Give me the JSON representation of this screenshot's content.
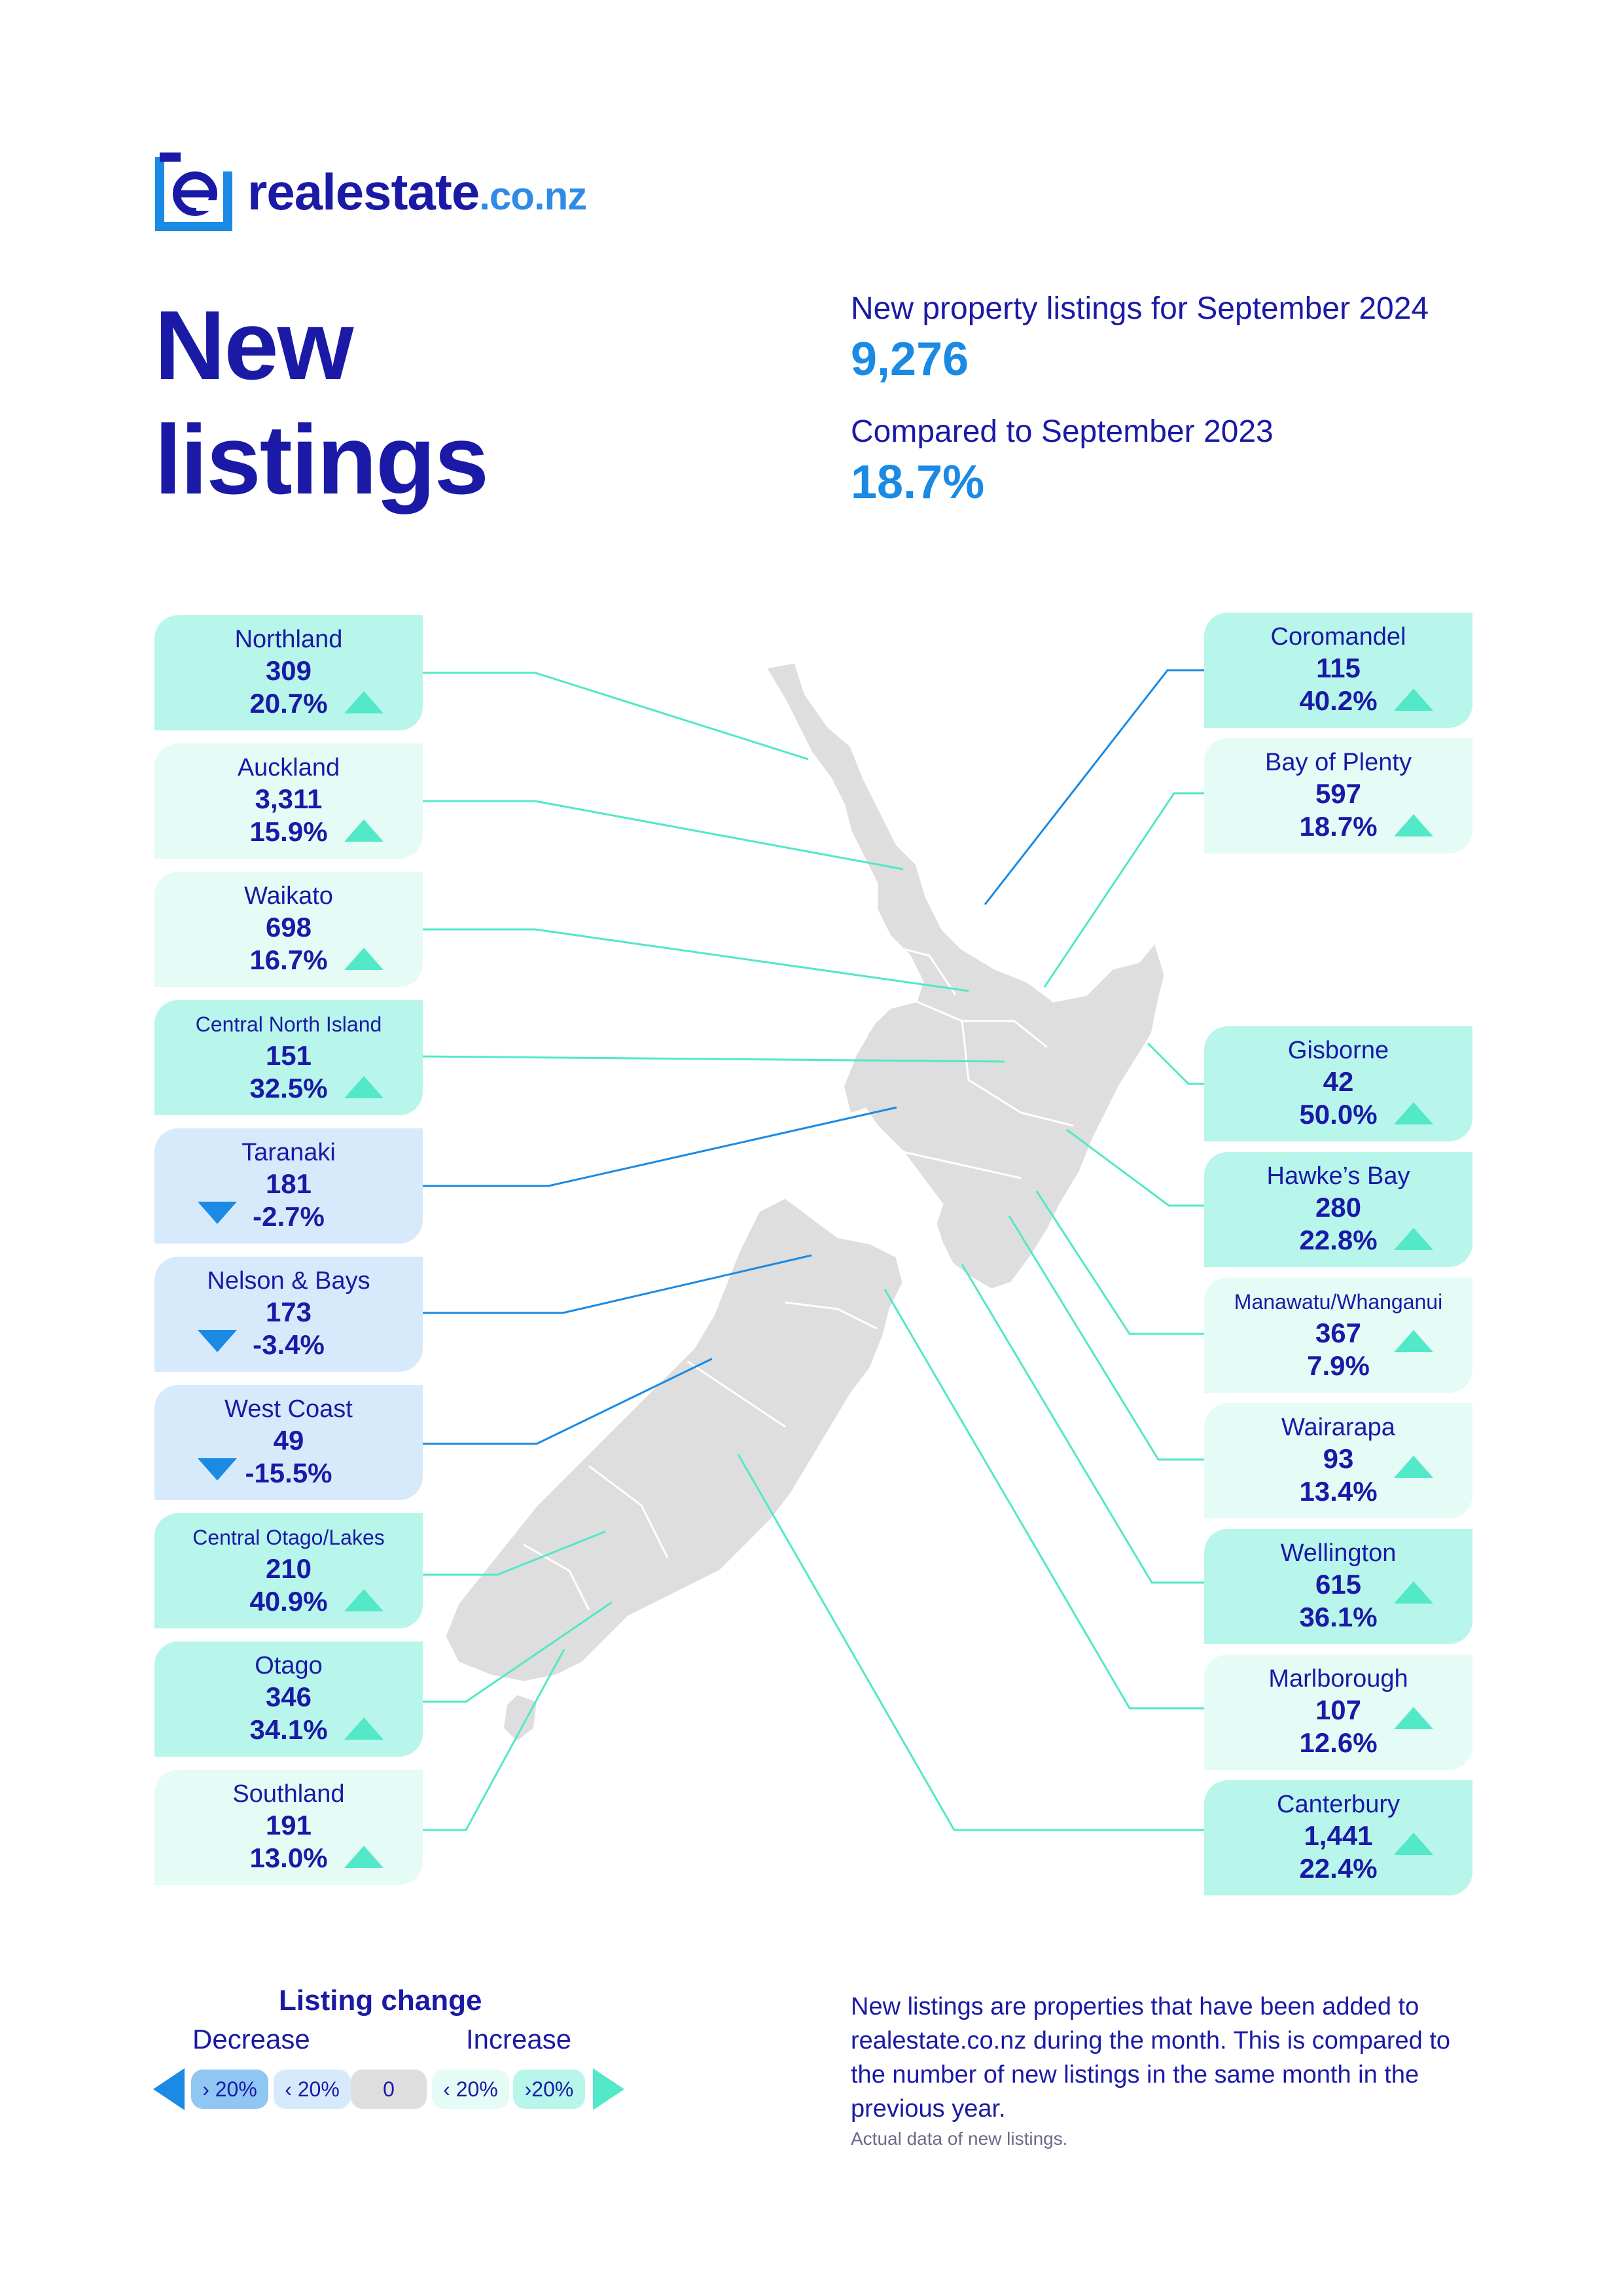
{
  "brand": {
    "name": "realestate",
    "tld": ".co.nz",
    "logo_letter": "e"
  },
  "hero": {
    "title_line1": "New",
    "title_line2": "listings"
  },
  "summary": {
    "listings_label": "New property listings for September 2024",
    "listings_value": "9,276",
    "compare_label": "Compared to September 2023",
    "compare_value": "18.7%"
  },
  "regions_left": [
    {
      "name": "Northland",
      "count": "309",
      "pct": "20.7%",
      "direction": "up"
    },
    {
      "name": "Auckland",
      "count": "3,311",
      "pct": "15.9%",
      "direction": "up"
    },
    {
      "name": "Waikato",
      "count": "698",
      "pct": "16.7%",
      "direction": "up"
    },
    {
      "name": "Central North Island",
      "count": "151",
      "pct": "32.5%",
      "direction": "up"
    },
    {
      "name": "Taranaki",
      "count": "181",
      "pct": "-2.7%",
      "direction": "down"
    },
    {
      "name": "Nelson & Bays",
      "count": "173",
      "pct": "-3.4%",
      "direction": "down"
    },
    {
      "name": "West Coast",
      "count": "49",
      "pct": "-15.5%",
      "direction": "down"
    },
    {
      "name": "Central Otago/Lakes",
      "count": "210",
      "pct": "40.9%",
      "direction": "up"
    },
    {
      "name": "Otago",
      "count": "346",
      "pct": "34.1%",
      "direction": "up"
    },
    {
      "name": "Southland",
      "count": "191",
      "pct": "13.0%",
      "direction": "up"
    }
  ],
  "regions_right": [
    {
      "name": "Coromandel",
      "count": "115",
      "pct": "40.2%",
      "direction": "up"
    },
    {
      "name": "Bay of Plenty",
      "count": "597",
      "pct": "18.7%",
      "direction": "up"
    },
    {
      "name": "Gisborne",
      "count": "42",
      "pct": "50.0%",
      "direction": "up"
    },
    {
      "name": "Hawke’s Bay",
      "count": "280",
      "pct": "22.8%",
      "direction": "up"
    },
    {
      "name": "Manawatu/Whanganui",
      "count": "367",
      "pct": "7.9%",
      "direction": "up"
    },
    {
      "name": "Wairarapa",
      "count": "93",
      "pct": "13.4%",
      "direction": "up"
    },
    {
      "name": "Wellington",
      "count": "615",
      "pct": "36.1%",
      "direction": "up"
    },
    {
      "name": "Marlborough",
      "count": "107",
      "pct": "12.6%",
      "direction": "up"
    },
    {
      "name": "Canterbury",
      "count": "1,441",
      "pct": "22.4%",
      "direction": "up"
    }
  ],
  "legend": {
    "title": "Listing change",
    "decrease_label": "Decrease",
    "increase_label": "Increase",
    "pills": [
      "› 20%",
      "‹ 20%",
      "0",
      "‹ 20%",
      "›20%"
    ]
  },
  "note": {
    "text": "New listings are properties that have been added to realestate.co.nz during the month. This is compared to the number of new listings in the same month in the previous year.",
    "small": "Actual data of new listings."
  },
  "colors": {
    "navy": "#1a1aa6",
    "blue": "#1a8ae4",
    "mint": "#52e8c8",
    "card_high": "#b8f5ea",
    "card_low": "#e4fbf6",
    "card_down": "#d6eafb",
    "map": "#dedede"
  }
}
